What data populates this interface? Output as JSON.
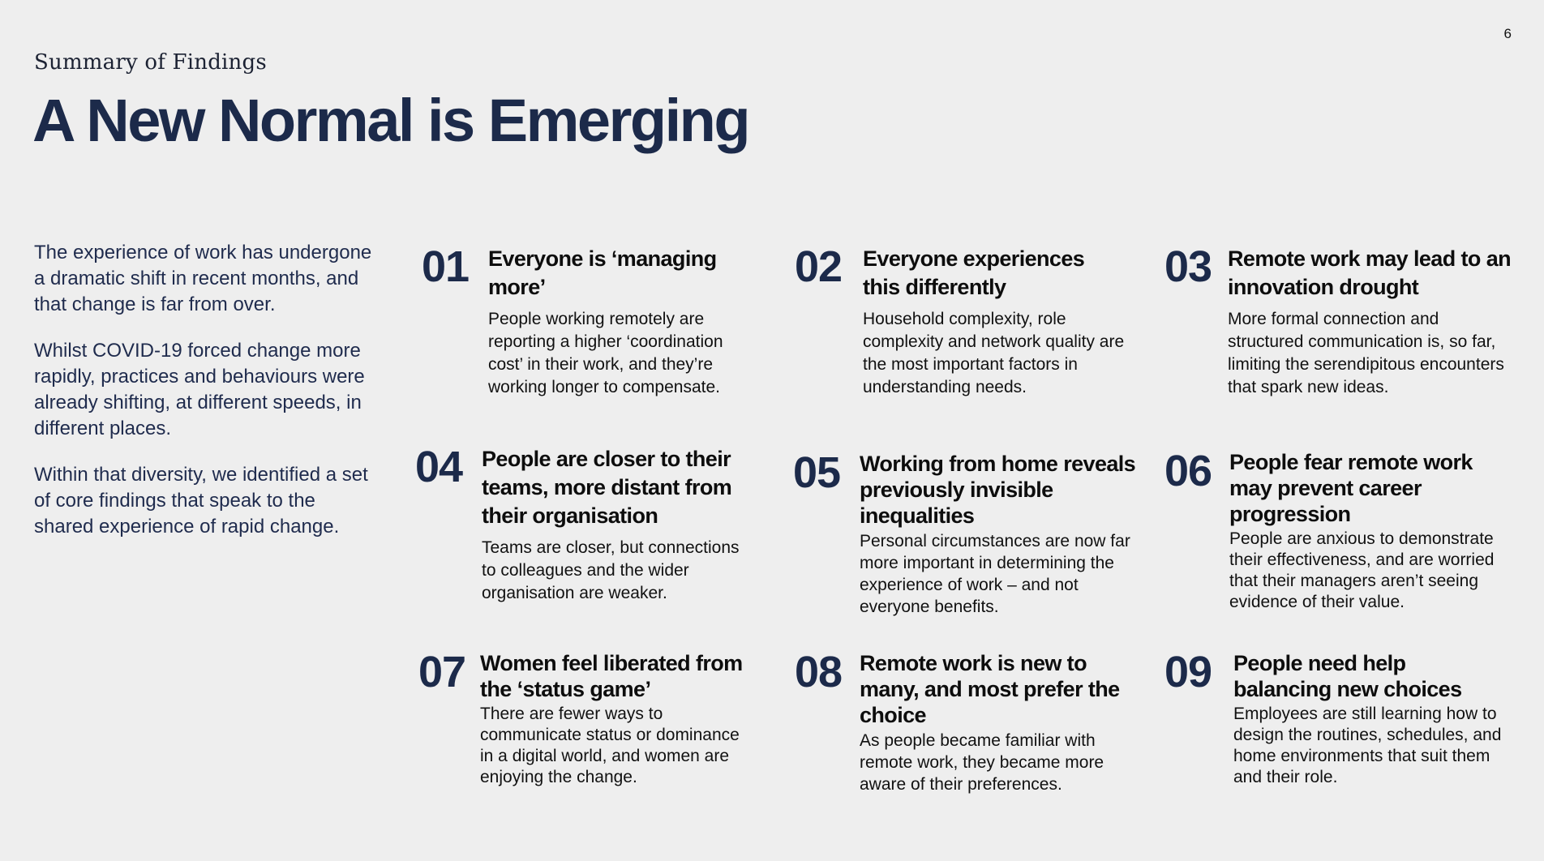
{
  "page": {
    "number": "6",
    "section_label": "Summary of Findings",
    "title": "A New Normal is Emerging"
  },
  "intro": {
    "paragraphs": [
      "The experience of work has undergone a dramatic shift in recent months, and that change is far from over.",
      "Whilst COVID-19 forced change more rapidly, practices and behaviours were already shifting, at different speeds, in different places.",
      "Within that diversity, we identified a set of core findings that speak to the shared experience of rapid change."
    ]
  },
  "findings": [
    {
      "number": "01",
      "heading": "Everyone is ‘managing more’",
      "body": "People working remotely are reporting a higher ‘coordination cost’ in their work, and they’re working longer to compensate."
    },
    {
      "number": "02",
      "heading": "Everyone experiences this differently",
      "body": "Household complexity, role complexity and network quality are the most important factors in understanding needs."
    },
    {
      "number": "03",
      "heading": "Remote work may lead to an innovation drought",
      "body": "More formal connection and structured communication is, so far, limiting the serendipitous encounters that spark new ideas."
    },
    {
      "number": "04",
      "heading": "People are closer to their teams, more distant from their organisation",
      "body": "Teams are closer, but connections to colleagues and the wider organisation are weaker."
    },
    {
      "number": "05",
      "heading": "Working from home reveals previously invisible inequalities",
      "body": "Personal circumstances are now far more important in determining the experience of work – and not everyone benefits."
    },
    {
      "number": "06",
      "heading": "People fear remote work may prevent career progression",
      "body": "People are anxious to demonstrate their effectiveness, and are worried that their managers aren’t seeing evidence of their value."
    },
    {
      "number": "07",
      "heading": "Women feel liberated from the ‘status game’",
      "body": "There are fewer ways to communicate status or dominance in a digital world, and women  are enjoying the change."
    },
    {
      "number": "08",
      "heading": "Remote work is new to many, and most prefer the choice",
      "body": "As people became familiar with remote work, they became more aware of their preferences."
    },
    {
      "number": "09",
      "heading": "People need help balancing new choices",
      "body": "Employees are still learning how to design the routines, schedules, and home environments that suit them and their role."
    }
  ]
}
